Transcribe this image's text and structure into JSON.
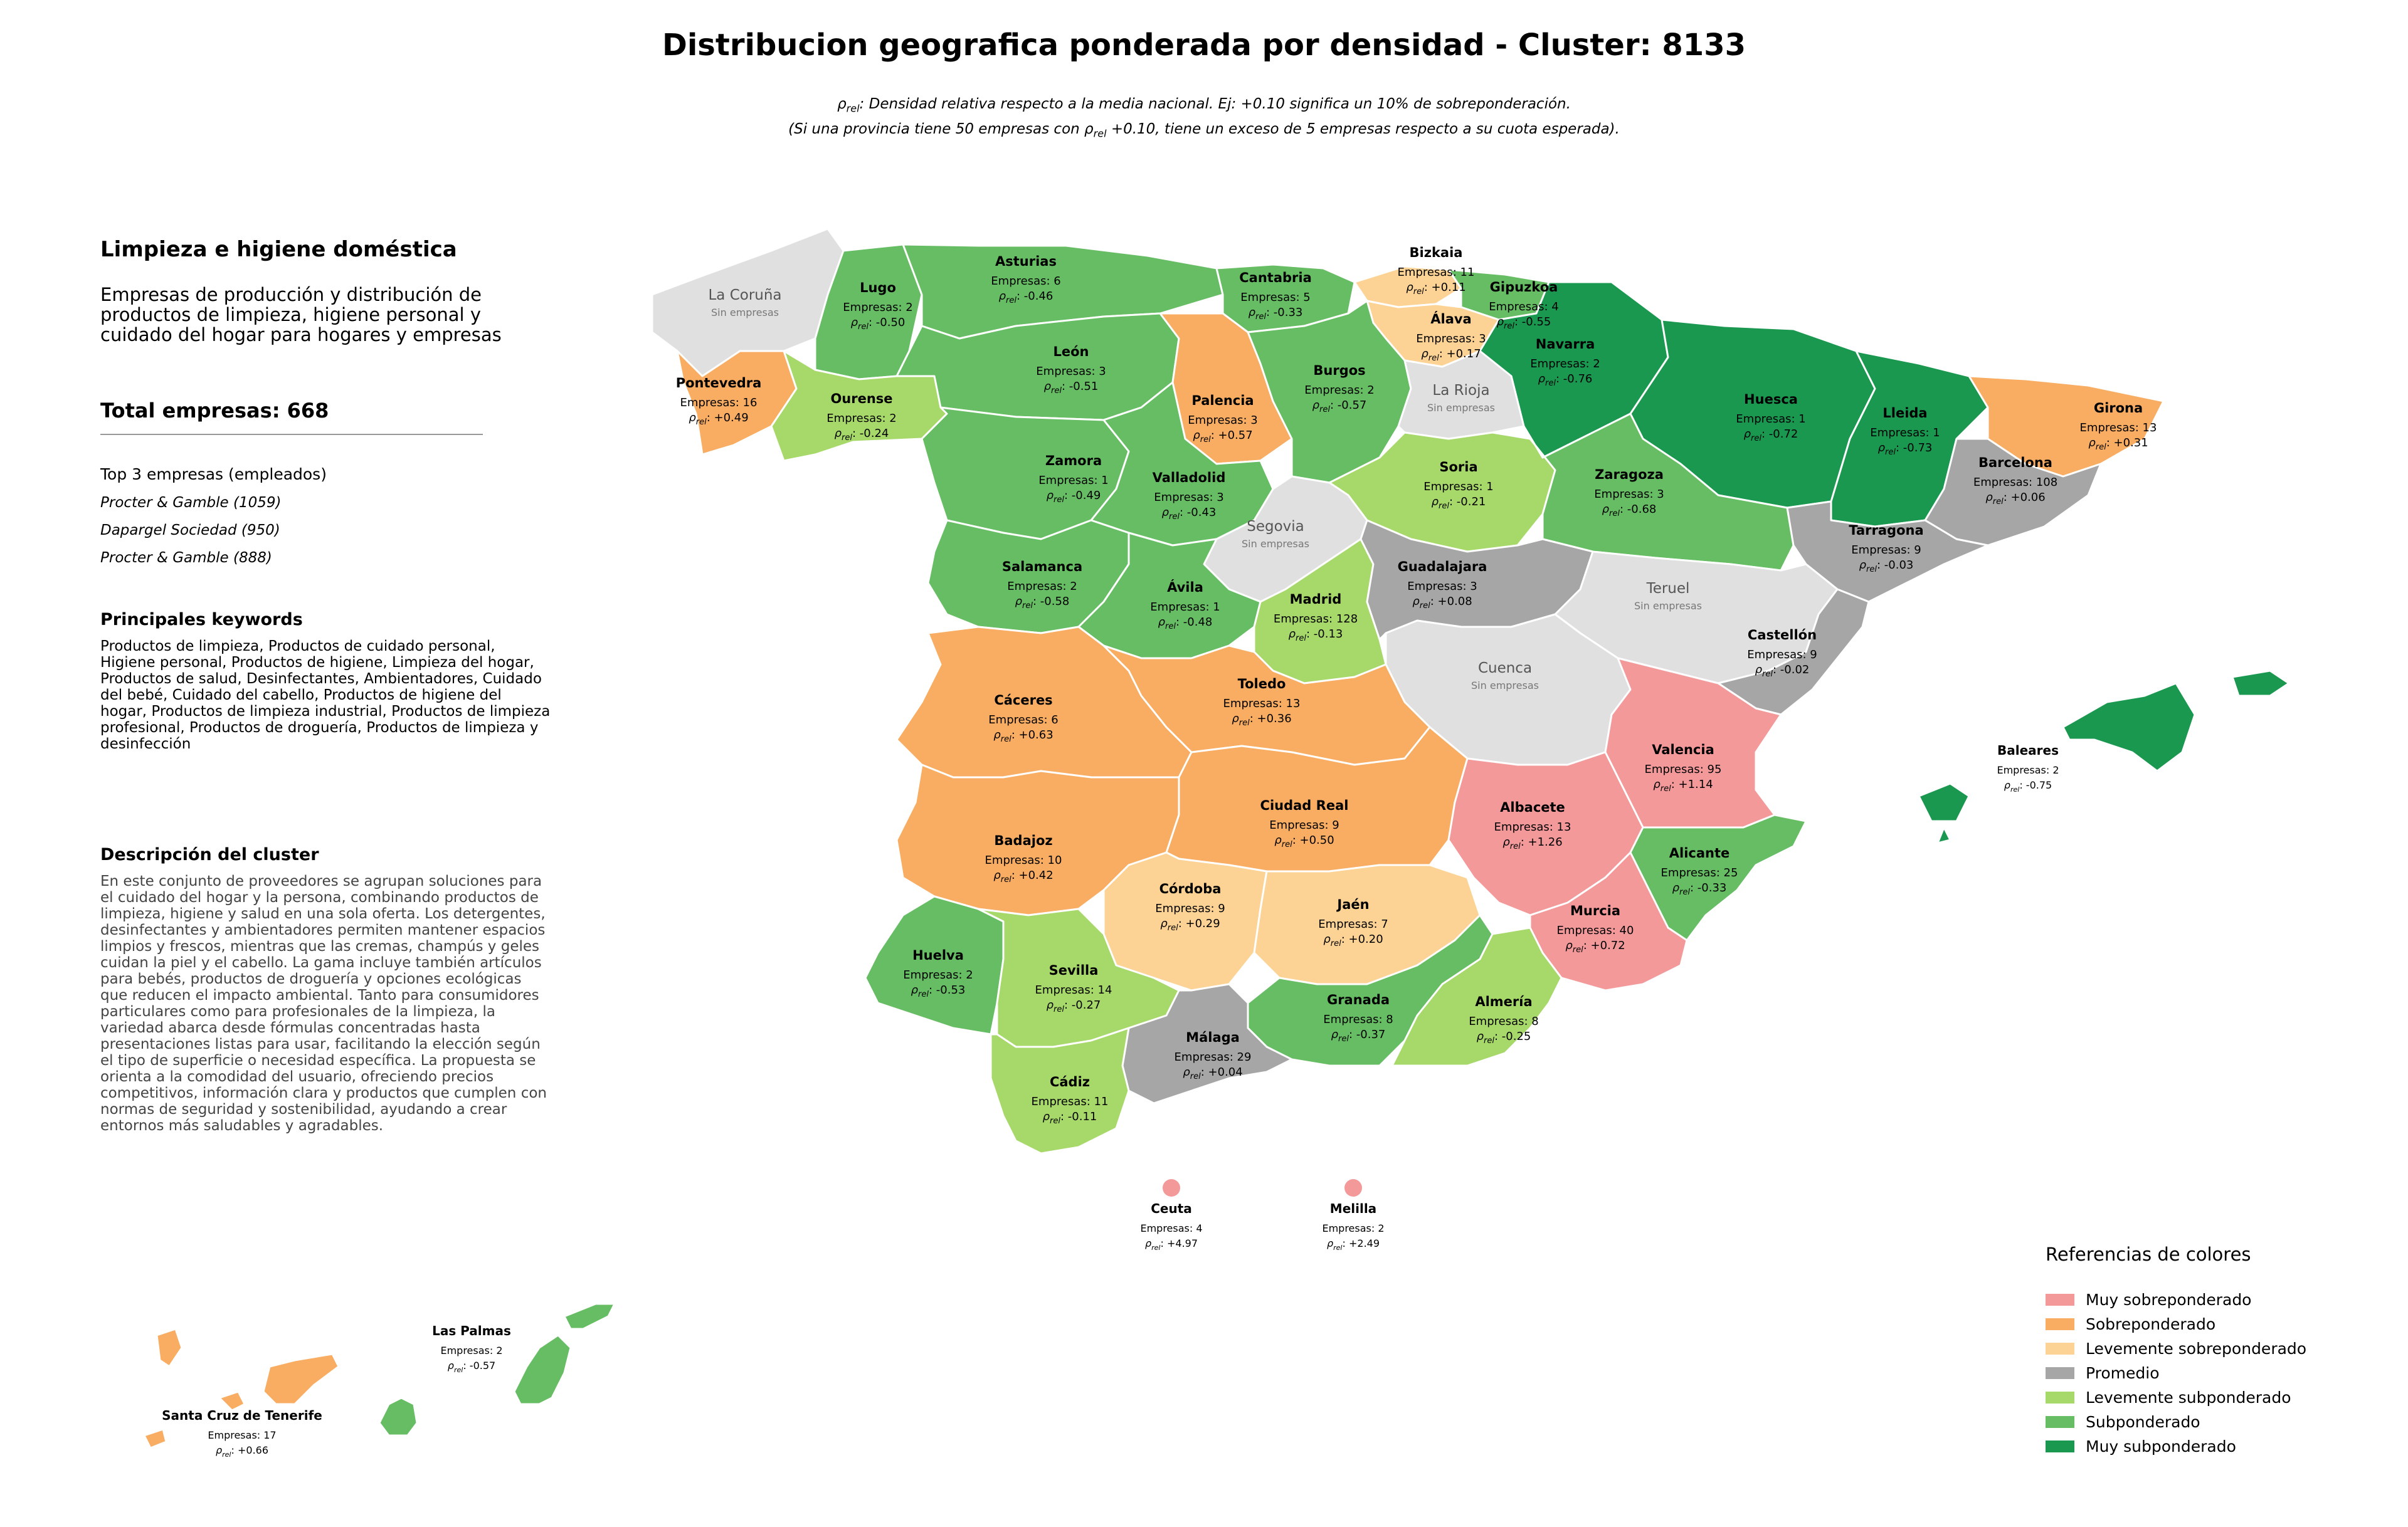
{
  "title": "Distribucion geografica ponderada por densidad - Cluster: 8133",
  "subtitle": {
    "line1_symbol": "ρ",
    "line1_sub": "rel",
    "line1_rest": ": Densidad relativa respecto a la media nacional. Ej: +0.10 significa un 10% de sobreponderación.",
    "line2_pre": "(Si una provincia tiene 50 empresas con ρ",
    "line2_sub": "rel",
    "line2_rest": " +0.10, tiene un exceso de 5 empresas respecto a su cuota esperada)."
  },
  "panel": {
    "heading": "Limpieza e higiene doméstica",
    "description": "Empresas de producción y distribución de productos de limpieza, higiene personal y cuidado del hogar para hogares y empresas",
    "total": "Total empresas: 668",
    "top3_title": "Top 3 empresas (empleados)",
    "top3": [
      "Procter & Gamble (1059)",
      "Dapargel Sociedad (950)",
      "Procter & Gamble (888)"
    ],
    "keywords_title": "Principales keywords",
    "keywords": "Productos de limpieza, Productos de cuidado personal, Higiene personal, Productos de higiene, Limpieza del hogar, Productos de salud, Desinfectantes, Ambientadores, Cuidado del bebé, Cuidado del cabello, Productos de higiene del hogar, Productos de limpieza industrial, Productos de limpieza profesional, Productos de droguería, Productos de limpieza y desinfección",
    "cluster_title": "Descripción del cluster",
    "cluster_text": "En este conjunto de proveedores se agrupan soluciones para el cuidado del hogar y la persona, combinando productos de limpieza, higiene y salud en una sola oferta. Los detergentes, desinfectantes y ambientadores permiten mantener espacios limpios y frescos, mientras que las cremas, champús y geles cuidan la piel y el cabello. La gama incluye también artículos para bebés, productos de droguería y opciones ecológicas que reducen el impacto ambiental. Tanto para consumidores particulares como para profesionales de la limpieza, la variedad abarca desde fórmulas concentradas hasta presentaciones listas para usar, facilitando la elección según el tipo de superficie o necesidad específica. La propuesta se orienta a la comodidad del usuario, ofreciendo precios competitivos, información clara y productos que cumplen con normas de seguridad y sostenibilidad, ayudando a crear entornos más saludables y agradables."
  },
  "labels": {
    "empresas_prefix": "Empresas: ",
    "rho_symbol": "ρ",
    "rho_sub": "rel",
    "no_companies": "Sin empresas"
  },
  "colors": {
    "muy_sobre": "#f4999a",
    "sobre": "#f8ad62",
    "lev_sobre": "#fcd394",
    "promedio": "#a6a6a6",
    "lev_sub": "#a7d96a",
    "sub": "#66bd63",
    "muy_sub": "#1a9850",
    "sin": "#e0e0e0"
  },
  "legend": {
    "title": "Referencias de colores",
    "items": [
      {
        "key": "muy_sobre",
        "label": "Muy sobreponderado"
      },
      {
        "key": "sobre",
        "label": "Sobreponderado"
      },
      {
        "key": "lev_sobre",
        "label": "Levemente sobreponderado"
      },
      {
        "key": "promedio",
        "label": "Promedio"
      },
      {
        "key": "lev_sub",
        "label": "Levemente subponderado"
      },
      {
        "key": "sub",
        "label": "Subponderado"
      },
      {
        "key": "muy_sub",
        "label": "Muy subponderado"
      }
    ]
  },
  "provinces": [
    {
      "name": "La Coruña",
      "empresas": null,
      "rho": null,
      "cat": "sin"
    },
    {
      "name": "Lugo",
      "empresas": 2,
      "rho": "-0.50",
      "cat": "sub"
    },
    {
      "name": "Asturias",
      "empresas": 6,
      "rho": "-0.46",
      "cat": "sub"
    },
    {
      "name": "Cantabria",
      "empresas": 5,
      "rho": "-0.33",
      "cat": "sub"
    },
    {
      "name": "Bizkaia",
      "empresas": 11,
      "rho": "+0.11",
      "cat": "lev_sobre"
    },
    {
      "name": "Gipuzkoa",
      "empresas": 4,
      "rho": "-0.55",
      "cat": "sub"
    },
    {
      "name": "Álava",
      "empresas": 3,
      "rho": "+0.17",
      "cat": "lev_sobre"
    },
    {
      "name": "Navarra",
      "empresas": 2,
      "rho": "-0.76",
      "cat": "muy_sub"
    },
    {
      "name": "Pontevedra",
      "empresas": 16,
      "rho": "+0.49",
      "cat": "sobre"
    },
    {
      "name": "Ourense",
      "empresas": 2,
      "rho": "-0.24",
      "cat": "lev_sub"
    },
    {
      "name": "León",
      "empresas": 3,
      "rho": "-0.51",
      "cat": "sub"
    },
    {
      "name": "Palencia",
      "empresas": 3,
      "rho": "+0.57",
      "cat": "sobre"
    },
    {
      "name": "Burgos",
      "empresas": 2,
      "rho": "-0.57",
      "cat": "sub"
    },
    {
      "name": "La Rioja",
      "empresas": null,
      "rho": null,
      "cat": "sin"
    },
    {
      "name": "Huesca",
      "empresas": 1,
      "rho": "-0.72",
      "cat": "muy_sub"
    },
    {
      "name": "Lleida",
      "empresas": 1,
      "rho": "-0.73",
      "cat": "muy_sub"
    },
    {
      "name": "Girona",
      "empresas": 13,
      "rho": "+0.31",
      "cat": "sobre"
    },
    {
      "name": "Barcelona",
      "empresas": 108,
      "rho": "+0.06",
      "cat": "promedio"
    },
    {
      "name": "Zamora",
      "empresas": 1,
      "rho": "-0.49",
      "cat": "sub"
    },
    {
      "name": "Valladolid",
      "empresas": 3,
      "rho": "-0.43",
      "cat": "sub"
    },
    {
      "name": "Soria",
      "empresas": 1,
      "rho": "-0.21",
      "cat": "lev_sub"
    },
    {
      "name": "Zaragoza",
      "empresas": 3,
      "rho": "-0.68",
      "cat": "sub"
    },
    {
      "name": "Tarragona",
      "empresas": 9,
      "rho": "-0.03",
      "cat": "promedio"
    },
    {
      "name": "Segovia",
      "empresas": null,
      "rho": null,
      "cat": "sin"
    },
    {
      "name": "Salamanca",
      "empresas": 2,
      "rho": "-0.58",
      "cat": "sub"
    },
    {
      "name": "Ávila",
      "empresas": 1,
      "rho": "-0.48",
      "cat": "sub"
    },
    {
      "name": "Madrid",
      "empresas": 128,
      "rho": "-0.13",
      "cat": "lev_sub"
    },
    {
      "name": "Guadalajara",
      "empresas": 3,
      "rho": "+0.08",
      "cat": "promedio"
    },
    {
      "name": "Teruel",
      "empresas": null,
      "rho": null,
      "cat": "sin"
    },
    {
      "name": "Castellón",
      "empresas": 9,
      "rho": "-0.02",
      "cat": "promedio"
    },
    {
      "name": "Cuenca",
      "empresas": null,
      "rho": null,
      "cat": "sin"
    },
    {
      "name": "Cáceres",
      "empresas": 6,
      "rho": "+0.63",
      "cat": "sobre"
    },
    {
      "name": "Toledo",
      "empresas": 13,
      "rho": "+0.36",
      "cat": "sobre"
    },
    {
      "name": "Valencia",
      "empresas": 95,
      "rho": "+1.14",
      "cat": "muy_sobre"
    },
    {
      "name": "Baleares",
      "empresas": 2,
      "rho": "-0.75",
      "cat": "muy_sub"
    },
    {
      "name": "Badajoz",
      "empresas": 10,
      "rho": "+0.42",
      "cat": "sobre"
    },
    {
      "name": "Ciudad Real",
      "empresas": 9,
      "rho": "+0.50",
      "cat": "sobre"
    },
    {
      "name": "Albacete",
      "empresas": 13,
      "rho": "+1.26",
      "cat": "muy_sobre"
    },
    {
      "name": "Alicante",
      "empresas": 25,
      "rho": "-0.33",
      "cat": "sub"
    },
    {
      "name": "Córdoba",
      "empresas": 9,
      "rho": "+0.29",
      "cat": "lev_sobre"
    },
    {
      "name": "Jaén",
      "empresas": 7,
      "rho": "+0.20",
      "cat": "lev_sobre"
    },
    {
      "name": "Murcia",
      "empresas": 40,
      "rho": "+0.72",
      "cat": "muy_sobre"
    },
    {
      "name": "Huelva",
      "empresas": 2,
      "rho": "-0.53",
      "cat": "sub"
    },
    {
      "name": "Sevilla",
      "empresas": 14,
      "rho": "-0.27",
      "cat": "lev_sub"
    },
    {
      "name": "Granada",
      "empresas": 8,
      "rho": "-0.37",
      "cat": "sub"
    },
    {
      "name": "Almería",
      "empresas": 8,
      "rho": "-0.25",
      "cat": "lev_sub"
    },
    {
      "name": "Málaga",
      "empresas": 29,
      "rho": "+0.04",
      "cat": "promedio"
    },
    {
      "name": "Cádiz",
      "empresas": 11,
      "rho": "-0.11",
      "cat": "lev_sub"
    },
    {
      "name": "Ceuta",
      "empresas": 4,
      "rho": "+4.97",
      "cat": "muy_sobre"
    },
    {
      "name": "Melilla",
      "empresas": 2,
      "rho": "+2.49",
      "cat": "muy_sobre"
    },
    {
      "name": "Las Palmas",
      "empresas": 2,
      "rho": "-0.57",
      "cat": "sub"
    },
    {
      "name": "Santa Cruz de Tenerife",
      "empresas": 17,
      "rho": "+0.66",
      "cat": "sobre"
    }
  ]
}
